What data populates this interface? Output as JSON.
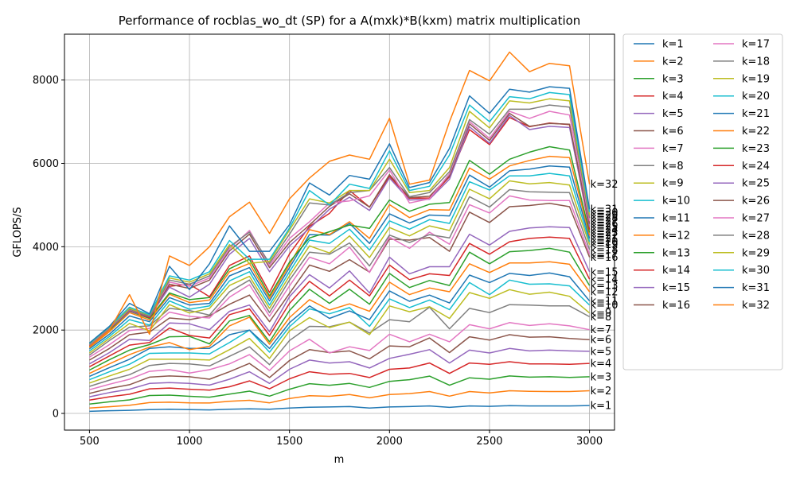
{
  "chart_data": {
    "type": "line",
    "title": "Performance of rocblas_wo_dt (SP) for a A(mxk)*B(kxm) matrix multiplication",
    "xlabel": "m",
    "ylabel": "GFLOPS/S",
    "xlim": [
      375,
      3125
    ],
    "ylim": [
      -400,
      9100
    ],
    "xticks": [
      500,
      1000,
      1500,
      2000,
      2500,
      3000
    ],
    "yticks": [
      0,
      2000,
      4000,
      6000,
      8000
    ],
    "grid": true,
    "legend_position": "outside-right",
    "legend_columns": 2,
    "x": [
      500,
      600,
      700,
      800,
      900,
      1000,
      1100,
      1200,
      1300,
      1400,
      1500,
      1600,
      1700,
      1800,
      1900,
      2000,
      2100,
      2200,
      2300,
      2400,
      2500,
      2600,
      2700,
      2800,
      2900,
      3000
    ],
    "colors": [
      "#1f77b4",
      "#ff7f0e",
      "#2ca02c",
      "#d62728",
      "#9467bd",
      "#8c564b",
      "#e377c2",
      "#7f7f7f",
      "#bcbd22",
      "#17becf"
    ],
    "series": [
      {
        "name": "k=1",
        "end_label": "k=1",
        "values": [
          50,
          65,
          75,
          90,
          100,
          90,
          85,
          100,
          110,
          100,
          130,
          150,
          155,
          165,
          130,
          155,
          165,
          180,
          145,
          180,
          170,
          185,
          180,
          180,
          180,
          190
        ]
      },
      {
        "name": "k=2",
        "end_label": "k=2",
        "values": [
          130,
          160,
          195,
          260,
          270,
          255,
          250,
          290,
          315,
          255,
          360,
          425,
          410,
          455,
          375,
          455,
          475,
          525,
          415,
          525,
          490,
          545,
          530,
          525,
          525,
          545
        ]
      },
      {
        "name": "k=3",
        "end_label": "k=3",
        "values": [
          225,
          280,
          325,
          430,
          440,
          410,
          390,
          465,
          535,
          415,
          580,
          715,
          675,
          720,
          625,
          770,
          810,
          895,
          675,
          855,
          820,
          900,
          870,
          880,
          865,
          880
        ]
      },
      {
        "name": "k=4",
        "end_label": "k=4",
        "values": [
          320,
          400,
          460,
          590,
          610,
          580,
          560,
          640,
          780,
          590,
          830,
          1000,
          940,
          960,
          860,
          1060,
          1090,
          1210,
          960,
          1210,
          1180,
          1240,
          1190,
          1190,
          1180,
          1200
        ]
      },
      {
        "name": "k=5",
        "end_label": "k=5",
        "values": [
          400,
          500,
          580,
          720,
          740,
          720,
          680,
          820,
          1000,
          720,
          1060,
          1280,
          1210,
          1240,
          1090,
          1320,
          1420,
          1530,
          1210,
          1520,
          1450,
          1560,
          1500,
          1520,
          1500,
          1490
        ]
      },
      {
        "name": "k=6",
        "end_label": "k=6",
        "values": [
          480,
          600,
          690,
          870,
          900,
          880,
          820,
          1000,
          1200,
          860,
          1270,
          1530,
          1460,
          1500,
          1310,
          1620,
          1600,
          1810,
          1460,
          1840,
          1760,
          1890,
          1830,
          1840,
          1800,
          1770
        ]
      },
      {
        "name": "k=7",
        "end_label": "k=7",
        "values": [
          570,
          700,
          820,
          1010,
          1050,
          970,
          1050,
          1190,
          1410,
          1030,
          1500,
          1780,
          1450,
          1600,
          1510,
          1900,
          1720,
          1900,
          1720,
          2130,
          2030,
          2180,
          2110,
          2150,
          2100,
          2010
        ]
      },
      {
        "name": "k=8",
        "end_label": "k=8",
        "values": [
          650,
          800,
          930,
          1150,
          1200,
          1190,
          1140,
          1370,
          1600,
          1170,
          1750,
          2090,
          2080,
          2190,
          1930,
          2250,
          2200,
          2550,
          2030,
          2520,
          2420,
          2610,
          2600,
          2580,
          2580,
          2320
        ]
      },
      {
        "name": "k=9",
        "end_label": "k=9",
        "values": [
          730,
          900,
          1060,
          1300,
          1300,
          1300,
          1280,
          1530,
          1800,
          1320,
          1980,
          2300,
          2060,
          2190,
          1890,
          2580,
          2440,
          2560,
          2280,
          2900,
          2760,
          2970,
          2860,
          2910,
          2810,
          2410
        ]
      },
      {
        "name": "k=10",
        "end_label": "k=10",
        "values": [
          810,
          1000,
          1180,
          1440,
          1450,
          1450,
          1430,
          1700,
          2000,
          1470,
          2080,
          2510,
          2390,
          2540,
          2090,
          2750,
          2540,
          2720,
          2490,
          3140,
          2850,
          3200,
          3100,
          3110,
          3060,
          2600
        ]
      },
      {
        "name": "k=11",
        "end_label": "k=11",
        "values": [
          890,
          1100,
          1300,
          1560,
          1600,
          1560,
          1560,
          1890,
          2000,
          1560,
          2180,
          2580,
          2280,
          2460,
          2250,
          2940,
          2690,
          2840,
          2650,
          3320,
          3140,
          3360,
          3310,
          3370,
          3280,
          2700
        ]
      },
      {
        "name": "k=12",
        "end_label": "k=12",
        "values": [
          960,
          1190,
          1410,
          1590,
          1700,
          1530,
          1610,
          2100,
          2310,
          1660,
          2300,
          2730,
          2480,
          2630,
          2450,
          3150,
          2850,
          3010,
          2920,
          3590,
          3380,
          3610,
          3610,
          3640,
          3580,
          2920
        ]
      },
      {
        "name": "k=13",
        "end_label": "k=13",
        "values": [
          1040,
          1290,
          1520,
          1650,
          1840,
          1850,
          1670,
          2220,
          2350,
          1720,
          2470,
          2980,
          2640,
          2980,
          2620,
          3360,
          3020,
          3190,
          3070,
          3870,
          3590,
          3880,
          3910,
          3960,
          3870,
          3070
        ]
      },
      {
        "name": "k=14",
        "end_label": "k=14",
        "values": [
          1120,
          1380,
          1640,
          1700,
          2050,
          1870,
          1810,
          2370,
          2510,
          1870,
          2640,
          3170,
          2820,
          3200,
          2820,
          3560,
          3210,
          3350,
          3310,
          4080,
          3820,
          4120,
          4200,
          4230,
          4200,
          3220
        ]
      },
      {
        "name": "k=15",
        "end_label": "k=15",
        "values": [
          1190,
          1460,
          1780,
          1750,
          2170,
          2150,
          2010,
          2450,
          2600,
          1960,
          2800,
          3330,
          3010,
          3420,
          2890,
          3750,
          3350,
          3520,
          3520,
          4300,
          4040,
          4370,
          4450,
          4480,
          4460,
          3400
        ]
      },
      {
        "name": "k=16",
        "end_label": "k=16",
        "values": [
          1280,
          1560,
          1890,
          1950,
          2290,
          2250,
          2340,
          2620,
          2840,
          2200,
          2880,
          3560,
          3410,
          3690,
          3390,
          4180,
          4160,
          4220,
          3890,
          4830,
          4580,
          4960,
          4990,
          5040,
          4960,
          3750
        ]
      },
      {
        "name": "k=17",
        "end_label": "k=17",
        "values": [
          1350,
          1650,
          1990,
          2040,
          2430,
          2330,
          2290,
          2790,
          3090,
          2330,
          3060,
          3750,
          3590,
          3990,
          3380,
          4230,
          3960,
          4350,
          4060,
          5010,
          4810,
          5220,
          5120,
          5110,
          5110,
          3820
        ]
      },
      {
        "name": "k=18",
        "end_label": "k=18",
        "values": [
          1400,
          1750,
          2070,
          2100,
          2520,
          2470,
          2360,
          2920,
          3200,
          2420,
          3200,
          3870,
          3820,
          4090,
          3540,
          4280,
          4100,
          4290,
          4210,
          5200,
          4950,
          5370,
          5320,
          5310,
          5300,
          3930
        ]
      },
      {
        "name": "k=19",
        "end_label": "k=19",
        "values": [
          1450,
          1800,
          2160,
          1980,
          2610,
          2410,
          2520,
          3070,
          3290,
          2520,
          3300,
          4020,
          3850,
          4260,
          3740,
          4460,
          4260,
          4500,
          4390,
          5380,
          5150,
          5580,
          5510,
          5540,
          5480,
          4050
        ]
      },
      {
        "name": "k=20",
        "end_label": "k=20",
        "values": [
          1500,
          1850,
          2250,
          2120,
          2700,
          2500,
          2580,
          3180,
          3400,
          2600,
          3400,
          4160,
          4080,
          4420,
          3920,
          4620,
          4420,
          4650,
          4560,
          5560,
          5360,
          5700,
          5700,
          5760,
          5700,
          4120
        ]
      },
      {
        "name": "k=21",
        "end_label": "k=21",
        "values": [
          1550,
          1900,
          2340,
          2200,
          2780,
          2600,
          2640,
          3300,
          3500,
          2700,
          3500,
          4290,
          4280,
          4560,
          4080,
          4790,
          4570,
          4760,
          4740,
          5720,
          5430,
          5820,
          5860,
          5940,
          5910,
          4200
        ]
      },
      {
        "name": "k=22",
        "end_label": "k=22",
        "values": [
          1580,
          1960,
          2420,
          2240,
          2860,
          2660,
          2720,
          3400,
          3600,
          2760,
          3570,
          4410,
          4290,
          4600,
          4200,
          5010,
          4700,
          4890,
          4880,
          5890,
          5620,
          5940,
          6070,
          6170,
          6140,
          4270
        ]
      },
      {
        "name": "k=23",
        "end_label": "k=23",
        "values": [
          1600,
          2000,
          2450,
          2280,
          2890,
          2730,
          2780,
          3470,
          3700,
          2820,
          3630,
          4210,
          4360,
          4520,
          4440,
          5120,
          4850,
          5020,
          5060,
          6070,
          5740,
          6100,
          6270,
          6400,
          6320,
          4340
        ]
      },
      {
        "name": "k=24",
        "end_label": "k=24",
        "values": [
          1620,
          2020,
          2460,
          2300,
          3050,
          3100,
          2800,
          3550,
          3780,
          2900,
          3830,
          4490,
          4800,
          5350,
          4950,
          5690,
          5160,
          5170,
          5680,
          6810,
          6450,
          7100,
          6880,
          6970,
          6930,
          4410
        ]
      },
      {
        "name": "k=25",
        "end_label": "k=25",
        "values": [
          1630,
          2030,
          2450,
          2320,
          3030,
          2790,
          3100,
          3820,
          4200,
          3400,
          4020,
          4440,
          4900,
          5190,
          4870,
          5650,
          5120,
          5140,
          5620,
          6880,
          6480,
          7150,
          6810,
          6890,
          6860,
          4480
        ]
      },
      {
        "name": "k=26",
        "end_label": "k=26",
        "values": [
          1640,
          2040,
          2470,
          2330,
          3100,
          3000,
          3200,
          3900,
          4300,
          3500,
          4100,
          4520,
          4970,
          5270,
          4950,
          5730,
          5180,
          5210,
          5700,
          6950,
          6550,
          7200,
          6890,
          6960,
          6940,
          4550
        ]
      },
      {
        "name": "k=27",
        "end_label": "k=27",
        "values": [
          1650,
          2050,
          2490,
          2340,
          3150,
          3050,
          3250,
          3950,
          4390,
          3550,
          4200,
          4600,
          5050,
          5100,
          5220,
          5840,
          5050,
          5150,
          5750,
          7000,
          6600,
          7250,
          7080,
          7250,
          7160,
          4620
        ]
      },
      {
        "name": "k=28",
        "end_label": "k=28",
        "values": [
          1660,
          2060,
          2500,
          2340,
          3200,
          3100,
          3300,
          4000,
          4350,
          3600,
          4300,
          5050,
          5000,
          5300,
          5350,
          5900,
          5200,
          5300,
          5800,
          7050,
          6700,
          7300,
          7300,
          7400,
          7350,
          4690
        ]
      },
      {
        "name": "k=29",
        "end_label": "k=29",
        "values": [
          1670,
          2070,
          2520,
          2360,
          3250,
          3150,
          3350,
          4050,
          3600,
          3650,
          4400,
          5150,
          5050,
          5350,
          5350,
          6100,
          5300,
          5350,
          5900,
          7250,
          6850,
          7500,
          7450,
          7550,
          7500,
          4760
        ]
      },
      {
        "name": "k=30",
        "end_label": "k=30",
        "values": [
          1680,
          2080,
          2550,
          2370,
          3300,
          3200,
          3400,
          4150,
          3700,
          3700,
          4450,
          5350,
          5000,
          5500,
          5400,
          6300,
          5350,
          5450,
          6200,
          7400,
          7000,
          7600,
          7550,
          7700,
          7650,
          4830
        ]
      },
      {
        "name": "k=31",
        "end_label": "k=31",
        "values": [
          1690,
          2090,
          2640,
          2390,
          3530,
          2970,
          3590,
          4500,
          3890,
          3890,
          4530,
          5530,
          5240,
          5710,
          5620,
          6470,
          5420,
          5540,
          6360,
          7620,
          7200,
          7780,
          7710,
          7840,
          7800,
          4900
        ]
      },
      {
        "name": "k=32",
        "end_label": "k=32",
        "values": [
          1600,
          2000,
          2850,
          1900,
          3780,
          3550,
          4000,
          4720,
          5070,
          4320,
          5150,
          5650,
          6050,
          6200,
          6100,
          7080,
          5500,
          5600,
          7000,
          8230,
          7980,
          8670,
          8200,
          8400,
          8340,
          5500
        ]
      }
    ]
  }
}
